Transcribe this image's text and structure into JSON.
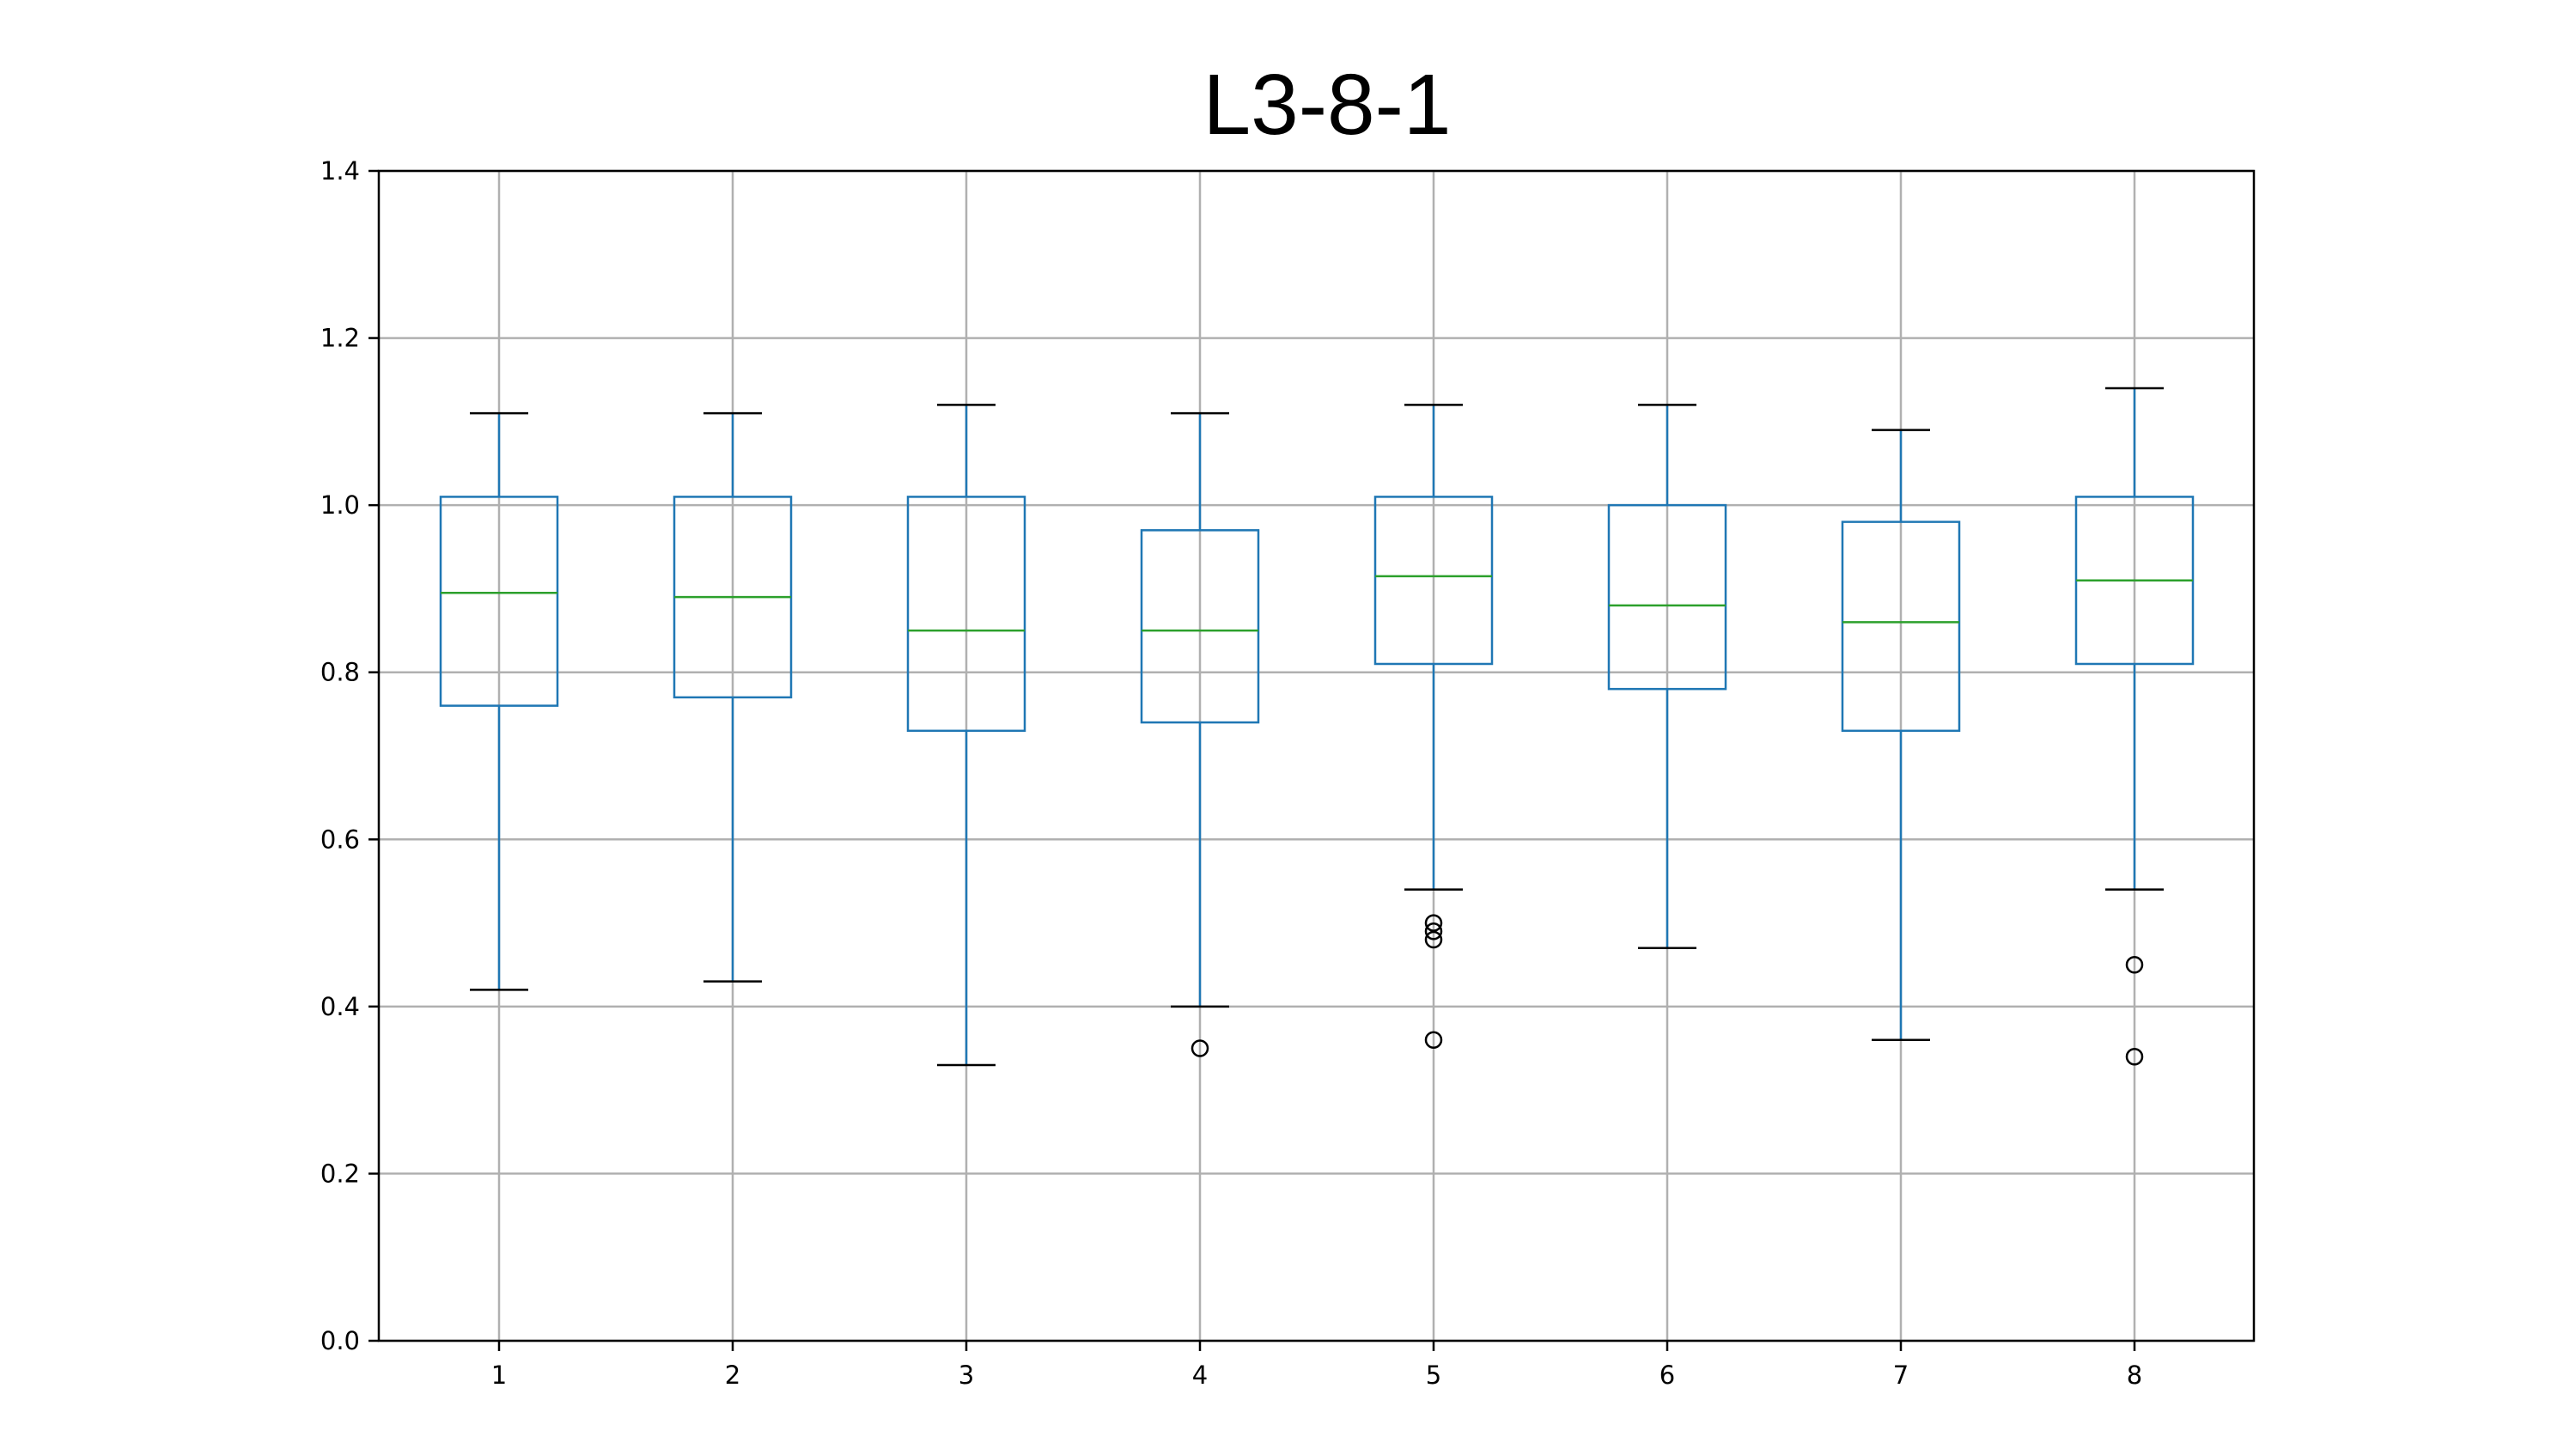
{
  "chart_data": {
    "type": "box",
    "title": "L3-8-1",
    "xlabel": "",
    "ylabel": "",
    "ylim": [
      0.0,
      1.4
    ],
    "yticks": [
      "0.0",
      "0.2",
      "0.4",
      "0.6",
      "0.8",
      "1.0",
      "1.2",
      "1.4"
    ],
    "grid": true,
    "categories": [
      "1",
      "2",
      "3",
      "4",
      "5",
      "6",
      "7",
      "8"
    ],
    "boxes": [
      {
        "label": "1",
        "whisker_low": 0.42,
        "q1": 0.76,
        "median": 0.895,
        "q3": 1.01,
        "whisker_high": 1.11,
        "outliers": []
      },
      {
        "label": "2",
        "whisker_low": 0.43,
        "q1": 0.77,
        "median": 0.89,
        "q3": 1.01,
        "whisker_high": 1.11,
        "outliers": []
      },
      {
        "label": "3",
        "whisker_low": 0.33,
        "q1": 0.73,
        "median": 0.85,
        "q3": 1.01,
        "whisker_high": 1.12,
        "outliers": []
      },
      {
        "label": "4",
        "whisker_low": 0.4,
        "q1": 0.74,
        "median": 0.85,
        "q3": 0.97,
        "whisker_high": 1.11,
        "outliers": [
          0.35
        ]
      },
      {
        "label": "5",
        "whisker_low": 0.54,
        "q1": 0.81,
        "median": 0.915,
        "q3": 1.01,
        "whisker_high": 1.12,
        "outliers": [
          0.5,
          0.49,
          0.48,
          0.36
        ]
      },
      {
        "label": "6",
        "whisker_low": 0.47,
        "q1": 0.78,
        "median": 0.88,
        "q3": 1.0,
        "whisker_high": 1.12,
        "outliers": []
      },
      {
        "label": "7",
        "whisker_low": 0.36,
        "q1": 0.73,
        "median": 0.86,
        "q3": 0.98,
        "whisker_high": 1.09,
        "outliers": []
      },
      {
        "label": "8",
        "whisker_low": 0.54,
        "q1": 0.81,
        "median": 0.91,
        "q3": 1.01,
        "whisker_high": 1.14,
        "outliers": [
          0.45,
          0.34
        ]
      }
    ],
    "colors": {
      "box": "#1f77b4",
      "median": "#2ca02c",
      "caps": "#000000",
      "grid": "#b0b0b0",
      "outlier": "#000000"
    }
  }
}
